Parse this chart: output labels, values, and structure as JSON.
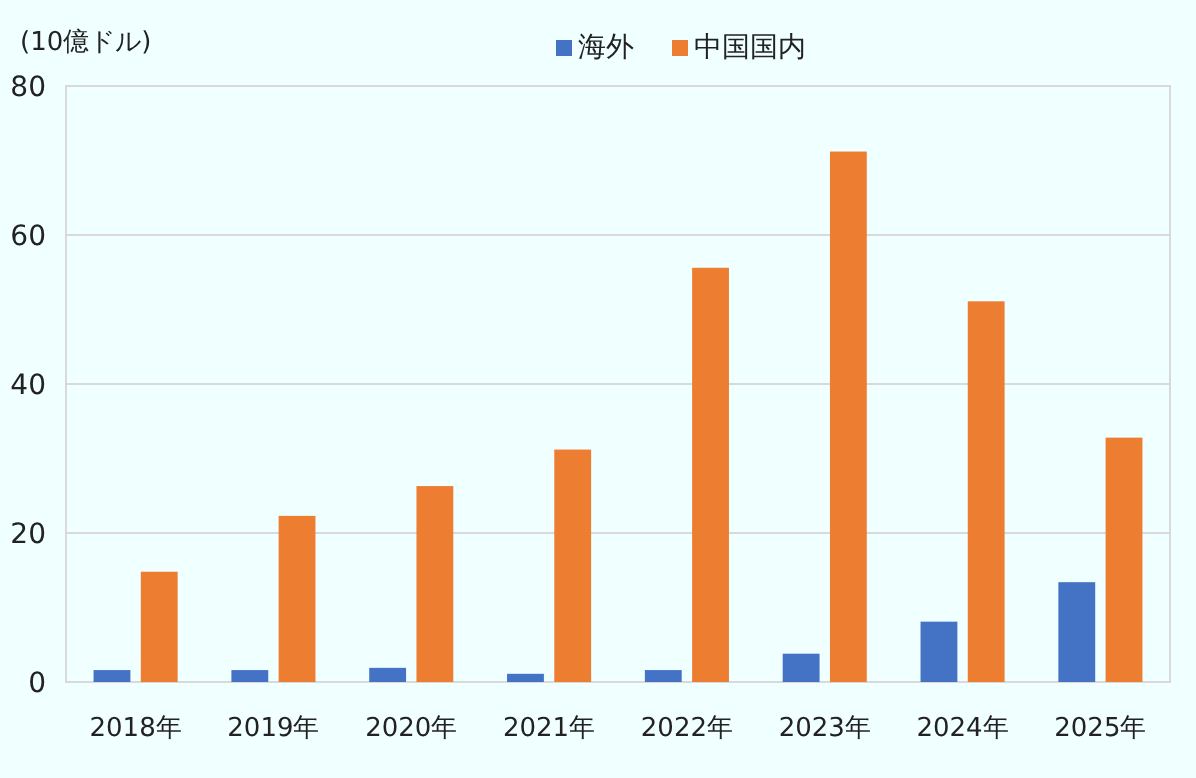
{
  "chart_data": {
    "type": "bar",
    "ylabel": "(10億ドル)",
    "categories": [
      "2018年",
      "2019年",
      "2020年",
      "2021年",
      "2022年",
      "2023年",
      "2024年",
      "2025年"
    ],
    "series": [
      {
        "name": "海外",
        "color": "#4472c4",
        "values": [
          1.6,
          1.6,
          1.9,
          1.1,
          1.6,
          3.8,
          8.1,
          13.4
        ]
      },
      {
        "name": "中国国内",
        "color": "#ed7d31",
        "values": [
          14.8,
          22.3,
          26.3,
          31.2,
          55.6,
          71.2,
          51.1,
          32.8
        ]
      }
    ],
    "ylim": [
      0,
      80
    ],
    "yticks": [
      0,
      20,
      40,
      60,
      80
    ],
    "grid": "y",
    "legend": "top"
  }
}
